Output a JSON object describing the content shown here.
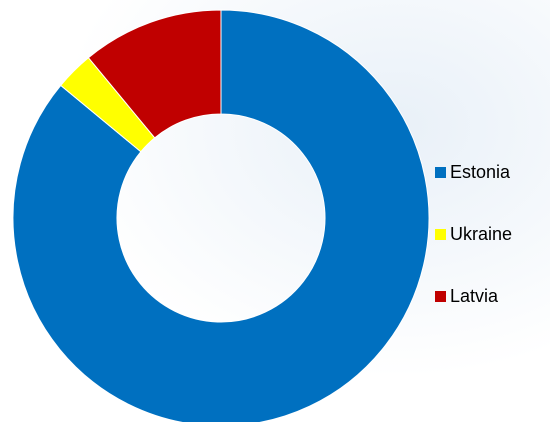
{
  "chart_data": {
    "type": "pie",
    "variant": "donut",
    "title": "",
    "slices": [
      {
        "label": "Estonia",
        "value": 86,
        "color": "#0070c0"
      },
      {
        "label": "Ukraine",
        "value": 3,
        "color": "#ffff00"
      },
      {
        "label": "Latvia",
        "value": 11,
        "color": "#c00000"
      }
    ],
    "legend_position": "right",
    "start_angle_deg": 0,
    "direction": "clockwise"
  }
}
